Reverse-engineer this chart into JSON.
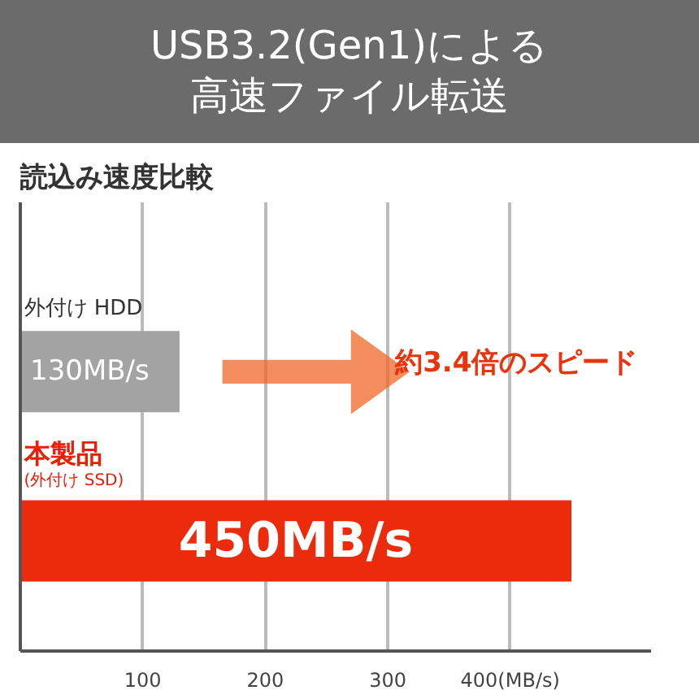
{
  "chart_data": {
    "type": "bar",
    "orientation": "horizontal",
    "title": "USB3.2(Gen1)による高速ファイル転送",
    "subtitle": "読込み速度比較",
    "categories": [
      "外付け HDD",
      "本製品\n(外付け SSD)"
    ],
    "values": [
      130,
      450
    ],
    "colors": [
      "#a3a3a3",
      "#ec2a0c"
    ],
    "value_labels": [
      "130MB/s",
      "450MB/s"
    ],
    "xlim": [
      0,
      515
    ],
    "xticks": [
      100,
      200,
      300,
      {
        "value": 400,
        "label": "400(MB/s)"
      }
    ],
    "grid": "x",
    "annotations": [
      "約3.4倍のスピード"
    ]
  }
}
